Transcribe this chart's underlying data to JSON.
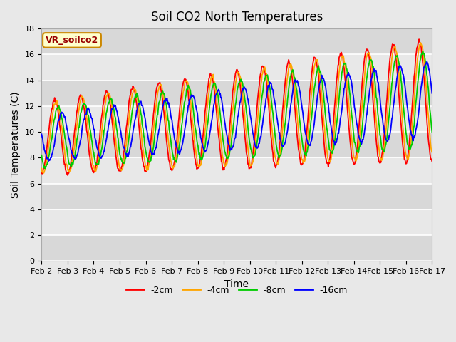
{
  "title": "Soil CO2 North Temperatures",
  "xlabel": "Time",
  "ylabel": "Soil Temperatures (C)",
  "ylim": [
    0,
    18
  ],
  "x_ticks": [
    2,
    3,
    4,
    5,
    6,
    7,
    8,
    9,
    10,
    11,
    12,
    13,
    14,
    15,
    16,
    17
  ],
  "x_tick_labels": [
    "Feb 2",
    "Feb 3",
    "Feb 4",
    "Feb 5",
    "Feb 6",
    "Feb 7",
    "Feb 8",
    "Feb 9",
    "Feb 10",
    "Feb 11",
    "Feb 12",
    "Feb 13",
    "Feb 14",
    "Feb 15",
    "Feb 16",
    "Feb 17"
  ],
  "legend_label": "VR_soilco2",
  "series": [
    {
      "label": "-2cm",
      "color": "#ff0000"
    },
    {
      "label": "-4cm",
      "color": "#ffa500"
    },
    {
      "label": "-8cm",
      "color": "#00cc00"
    },
    {
      "label": "-16cm",
      "color": "#0000ff"
    }
  ],
  "phase_lags": [
    0.0,
    0.06,
    0.14,
    0.28
  ],
  "amp_factors": [
    1.0,
    0.95,
    0.8,
    0.62
  ],
  "base_start": 9.5,
  "base_slope": 0.2,
  "amp_start": 2.8,
  "amp_slope": 0.13,
  "background_color": "#e8e8e8",
  "plot_bg_color": "#e8e8e8",
  "title_fontsize": 12,
  "axis_label_fontsize": 10,
  "tick_fontsize": 8,
  "legend_box_color": "#ffffcc",
  "legend_box_edge_color": "#cc8800"
}
